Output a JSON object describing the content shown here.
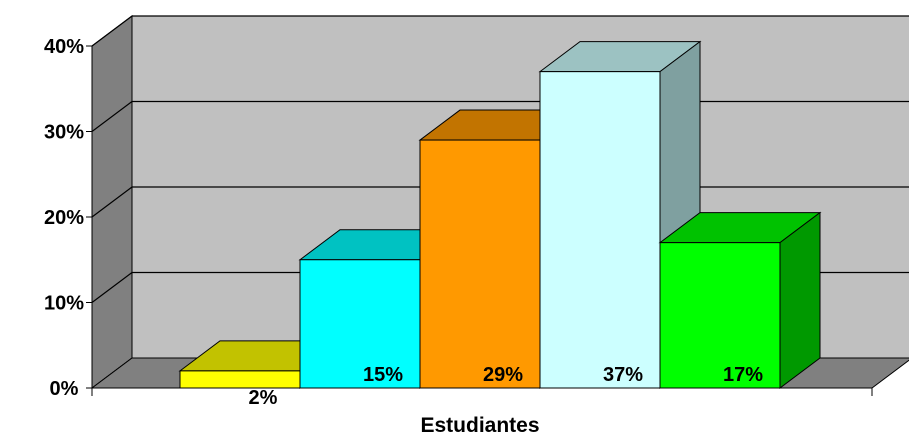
{
  "chart_data": {
    "type": "bar",
    "style": "3d-column",
    "xlabel": "Estudiantes",
    "ylabel": "",
    "ylim": [
      0,
      40
    ],
    "yticks": [
      "0%",
      "10%",
      "20%",
      "30%",
      "40%"
    ],
    "values": [
      2,
      15,
      29,
      37,
      17
    ],
    "data_labels": [
      "2%",
      "15%",
      "29%",
      "37%",
      "17%"
    ],
    "grid": true,
    "legend": "none",
    "colors": {
      "wall": "#c0c0c0",
      "side_wall": "#808080",
      "floor": "#808080",
      "bars": [
        {
          "front": "#ffff00",
          "top": "#c2c200",
          "side": "#999900"
        },
        {
          "front": "#00ffff",
          "top": "#00c2c2",
          "side": "#009999"
        },
        {
          "front": "#ff9900",
          "top": "#c27400",
          "side": "#995c00"
        },
        {
          "front": "#ccffff",
          "top": "#9cc2c2",
          "side": "#7fa0a0"
        },
        {
          "front": "#00ff00",
          "top": "#00c200",
          "side": "#009900"
        }
      ]
    }
  }
}
